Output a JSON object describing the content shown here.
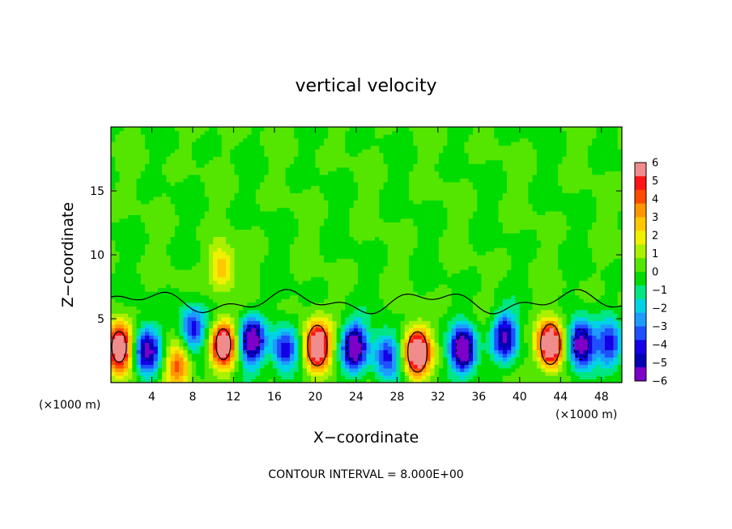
{
  "chart_data": {
    "type": "heatmap",
    "title": "vertical velocity",
    "xlabel": "X−coordinate",
    "ylabel": "Z−coordinate",
    "x_unit": "(×1000 m)",
    "z_unit": "(×1000 m)",
    "xlim": [
      0,
      50
    ],
    "ylim": [
      0,
      20
    ],
    "x_ticks": [
      4,
      8,
      12,
      16,
      20,
      24,
      28,
      32,
      36,
      40,
      44,
      48
    ],
    "y_ticks": [
      5,
      10,
      15
    ],
    "colorbar": {
      "min": -6,
      "max": 6,
      "labels": [
        6,
        5,
        4,
        3,
        2,
        1,
        0,
        -1,
        -2,
        -3,
        -4,
        -5,
        -6
      ],
      "colors": [
        "#f08c8c",
        "#ff1414",
        "#ff4b00",
        "#ff9600",
        "#ffc800",
        "#f0f000",
        "#aaf000",
        "#55e600",
        "#00dc00",
        "#00e682",
        "#00d2e6",
        "#1e9bff",
        "#1e50ff",
        "#1400e6",
        "#0000b4",
        "#7d00c8"
      ]
    },
    "features": [
      {
        "kind": "updraft",
        "x": 0.8,
        "z": 2.8,
        "amp": 7.5
      },
      {
        "kind": "updraft",
        "x": 11.0,
        "z": 3.0,
        "amp": 7.2
      },
      {
        "kind": "updraft",
        "x": 10.8,
        "z": 9.0,
        "amp": 3.0
      },
      {
        "kind": "updraft",
        "x": 20.2,
        "z": 2.9,
        "amp": 8.0
      },
      {
        "kind": "updraft",
        "x": 30.0,
        "z": 2.4,
        "amp": 7.6
      },
      {
        "kind": "updraft",
        "x": 43.0,
        "z": 3.0,
        "amp": 8.0
      },
      {
        "kind": "updraft",
        "x": 6.5,
        "z": 1.3,
        "amp": 4.0
      },
      {
        "kind": "downdraft",
        "x": 3.5,
        "z": 2.5,
        "amp": -5.5
      },
      {
        "kind": "downdraft",
        "x": 8.0,
        "z": 4.2,
        "amp": -4.5
      },
      {
        "kind": "downdraft",
        "x": 13.8,
        "z": 3.3,
        "amp": -6.5
      },
      {
        "kind": "downdraft",
        "x": 17.0,
        "z": 2.6,
        "amp": -4.5
      },
      {
        "kind": "downdraft",
        "x": 23.8,
        "z": 2.8,
        "amp": -6.8
      },
      {
        "kind": "downdraft",
        "x": 27.0,
        "z": 2.2,
        "amp": -4.0
      },
      {
        "kind": "downdraft",
        "x": 34.5,
        "z": 2.6,
        "amp": -6.8
      },
      {
        "kind": "downdraft",
        "x": 38.5,
        "z": 3.6,
        "amp": -5.5
      },
      {
        "kind": "downdraft",
        "x": 46.0,
        "z": 3.0,
        "amp": -6.8
      },
      {
        "kind": "downdraft",
        "x": 48.8,
        "z": 3.0,
        "amp": -4.0
      }
    ],
    "contour_interval_label": "CONTOUR INTERVAL =  8.000E+00"
  }
}
